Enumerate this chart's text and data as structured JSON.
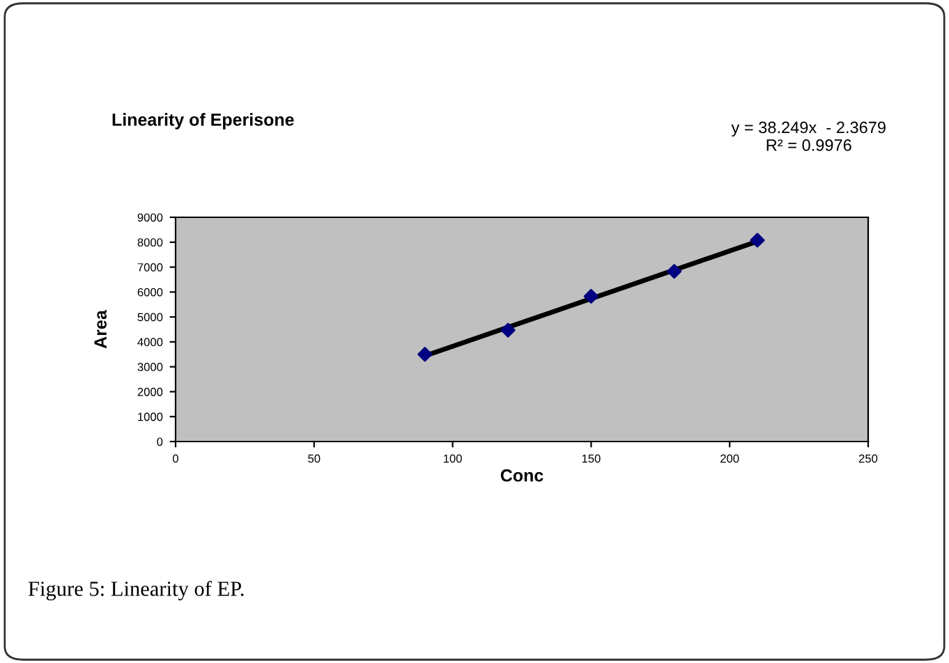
{
  "chart_data": {
    "type": "scatter",
    "title": "Linearity of Eperisone",
    "xlabel": "Conc",
    "ylabel": "Area",
    "x": [
      90,
      120,
      150,
      180,
      210
    ],
    "series": [
      {
        "color": "#000080",
        "marker": "diamond",
        "values": [
          3500,
          4470,
          5830,
          6830,
          8080
        ]
      },
      {
        "type": "line",
        "color": "#000000",
        "x": [
          90,
          210
        ],
        "values": [
          3440,
          8030
        ]
      }
    ],
    "xlim": [
      0,
      250
    ],
    "xticks": [
      0,
      50,
      100,
      150,
      200,
      250
    ],
    "ylim": [
      0,
      9000
    ],
    "yticks": [
      0,
      1000,
      2000,
      3000,
      4000,
      5000,
      6000,
      7000,
      8000,
      9000
    ],
    "grid": false,
    "legend": false,
    "annotations": [
      "y = 38.249x  - 2.3679\nR² = 0.9976",
      "Figure 5: Linearity of EP."
    ]
  }
}
